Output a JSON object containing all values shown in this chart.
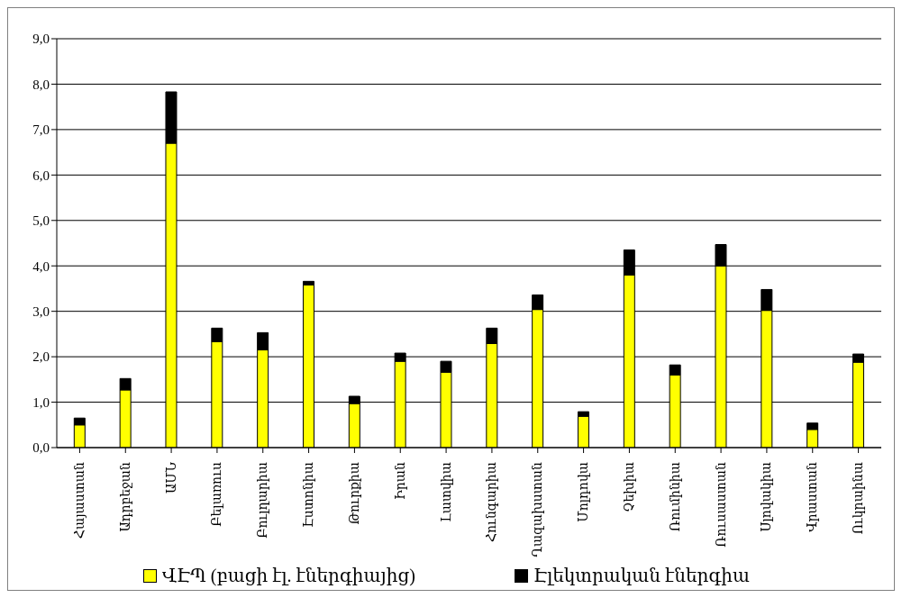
{
  "chart_data": {
    "type": "bar",
    "stacked": true,
    "categories": [
      "Հայաստան",
      "Ադրբեջան",
      "ԱՄՆ",
      "Բելառուս",
      "Բուլղարիա",
      "Էստոնիա",
      "Թուրքիա",
      "Իրան",
      "Լատվիա",
      "Հունգարիա",
      "Ղազախստան",
      "Մոլդովա",
      "Չեխիա",
      "Ռումինիա",
      "Ռուսաստան",
      "Սլովակիա",
      "Վրաստան",
      "Ուկրաինա"
    ],
    "series": [
      {
        "name": "ՎԷՊ (բացի էլ. էներգիայից)",
        "color": "#ffff00",
        "values": [
          0.5,
          1.27,
          6.7,
          2.33,
          2.15,
          3.58,
          0.97,
          1.9,
          1.66,
          2.29,
          3.04,
          0.69,
          3.8,
          1.6,
          4.0,
          3.02,
          0.4,
          1.88
        ]
      },
      {
        "name": "Էլեկտրական էներգիա",
        "color": "#000000",
        "values": [
          0.15,
          0.25,
          1.13,
          0.3,
          0.38,
          0.08,
          0.16,
          0.18,
          0.24,
          0.34,
          0.32,
          0.1,
          0.55,
          0.22,
          0.47,
          0.46,
          0.14,
          0.18
        ]
      }
    ],
    "ylim": [
      0,
      9
    ],
    "yticks": [
      {
        "value": 0,
        "label": "0,0"
      },
      {
        "value": 1,
        "label": "1,0"
      },
      {
        "value": 2,
        "label": "2,0"
      },
      {
        "value": 3,
        "label": "3,0"
      },
      {
        "value": 4,
        "label": "4,0"
      },
      {
        "value": 5,
        "label": "5,0"
      },
      {
        "value": 6,
        "label": "6,0"
      },
      {
        "value": 7,
        "label": "7,0"
      },
      {
        "value": 8,
        "label": "8,0"
      },
      {
        "value": 9,
        "label": "9,0"
      }
    ],
    "grid": "y",
    "legend": "bottom"
  }
}
